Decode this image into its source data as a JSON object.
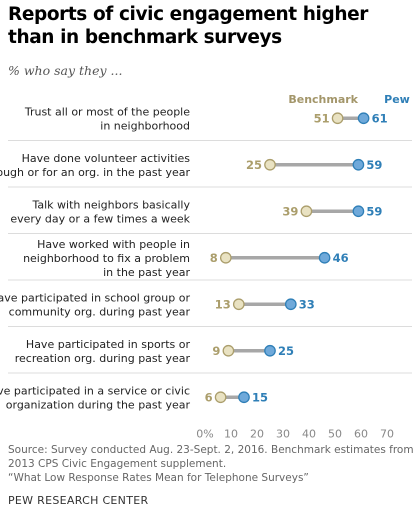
{
  "title_lines": [
    "Reports of civic engagement higher",
    "than in benchmark surveys"
  ],
  "subtitle": "% who say they ...",
  "colors": {
    "benchmark": "#ab9e6c",
    "benchmark_fill": "#e9e2c2",
    "pew": "#2f7fb7",
    "pew_fill": "#6fa9da",
    "connector": "#a7a7a7",
    "divider": "#dcdcdc"
  },
  "chart_data": {
    "type": "dot",
    "title": "Reports of civic engagement higher than in benchmark surveys",
    "subtitle": "% who say they ...",
    "legend": [
      "Benchmark",
      "Pew"
    ],
    "legend_position": "top-right",
    "categories": [
      [
        "Trust all or most of the people",
        "in neighborhood"
      ],
      [
        "Have done volunteer activities",
        "through or for an org. in the past year"
      ],
      [
        "Talk with neighbors basically",
        "every day or a few times a week"
      ],
      [
        "Have worked with people in",
        "neighborhood to fix a problem",
        "in the past year"
      ],
      [
        "Have participated in school group or",
        "community org. during past year"
      ],
      [
        "Have participated in sports or",
        "recreation org. during past year"
      ],
      [
        "Have participated in a service or civic",
        "organization during the past year"
      ]
    ],
    "series": [
      {
        "name": "Benchmark",
        "values": [
          51,
          25,
          39,
          8,
          13,
          9,
          6
        ]
      },
      {
        "name": "Pew",
        "values": [
          61,
          59,
          59,
          46,
          33,
          25,
          15
        ]
      }
    ],
    "xlim": [
      0,
      70
    ],
    "xticks": [
      "0%",
      "10",
      "20",
      "30",
      "40",
      "50",
      "60",
      "70"
    ],
    "grid": false
  },
  "source_lines": [
    "Source: Survey conducted Aug. 23-Sept. 2, 2016. Benchmark estimates from",
    "2013 CPS Civic Engagement supplement.",
    "“What Low Response Rates Mean for Telephone Surveys”"
  ],
  "footer": "PEW RESEARCH CENTER"
}
